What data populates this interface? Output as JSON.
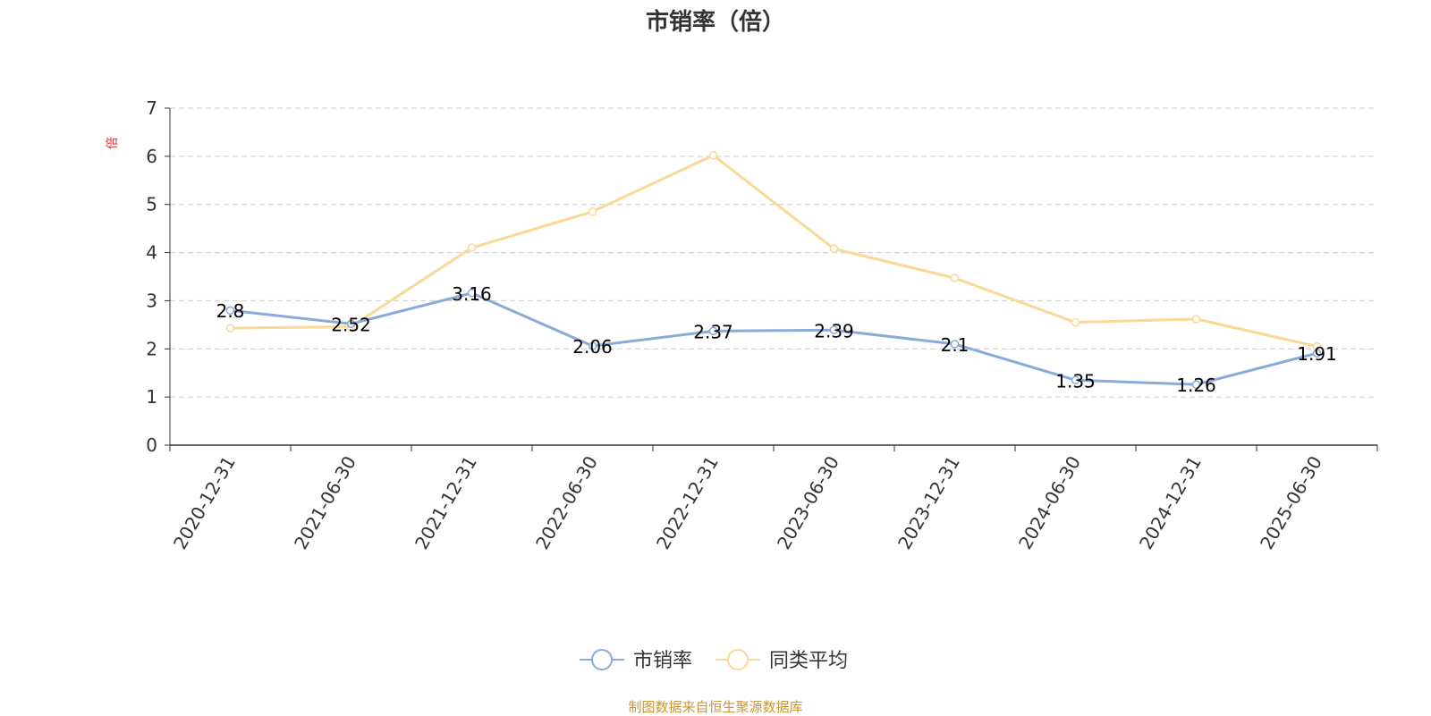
{
  "chart_data": {
    "type": "line",
    "title": "市销率（倍）",
    "ylabel": "倍",
    "xlabel": "",
    "categories": [
      "2020-12-31",
      "2021-06-30",
      "2021-12-31",
      "2022-06-30",
      "2022-12-31",
      "2023-06-30",
      "2023-12-31",
      "2024-06-30",
      "2024-12-31",
      "2025-06-30"
    ],
    "ylim": [
      0,
      7
    ],
    "yticks": [
      "0",
      "1",
      "2",
      "3",
      "4",
      "5",
      "6",
      "7"
    ],
    "grid": true,
    "legend_position": "bottom-center",
    "series": [
      {
        "name": "市销率",
        "color": "#8aaad8",
        "values": [
          2.8,
          2.52,
          3.16,
          2.06,
          2.37,
          2.39,
          2.1,
          1.35,
          1.26,
          1.91
        ],
        "labels": [
          "2.8",
          "2.52",
          "3.16",
          "2.06",
          "2.37",
          "2.39",
          "2.1",
          "1.35",
          "1.26",
          "1.91"
        ]
      },
      {
        "name": "同类平均",
        "color": "#fbd895",
        "values": [
          2.43,
          2.46,
          4.1,
          4.85,
          6.02,
          4.08,
          3.47,
          2.55,
          2.62,
          2.05
        ]
      }
    ]
  },
  "source_note": "制图数据来自恒生聚源数据库"
}
